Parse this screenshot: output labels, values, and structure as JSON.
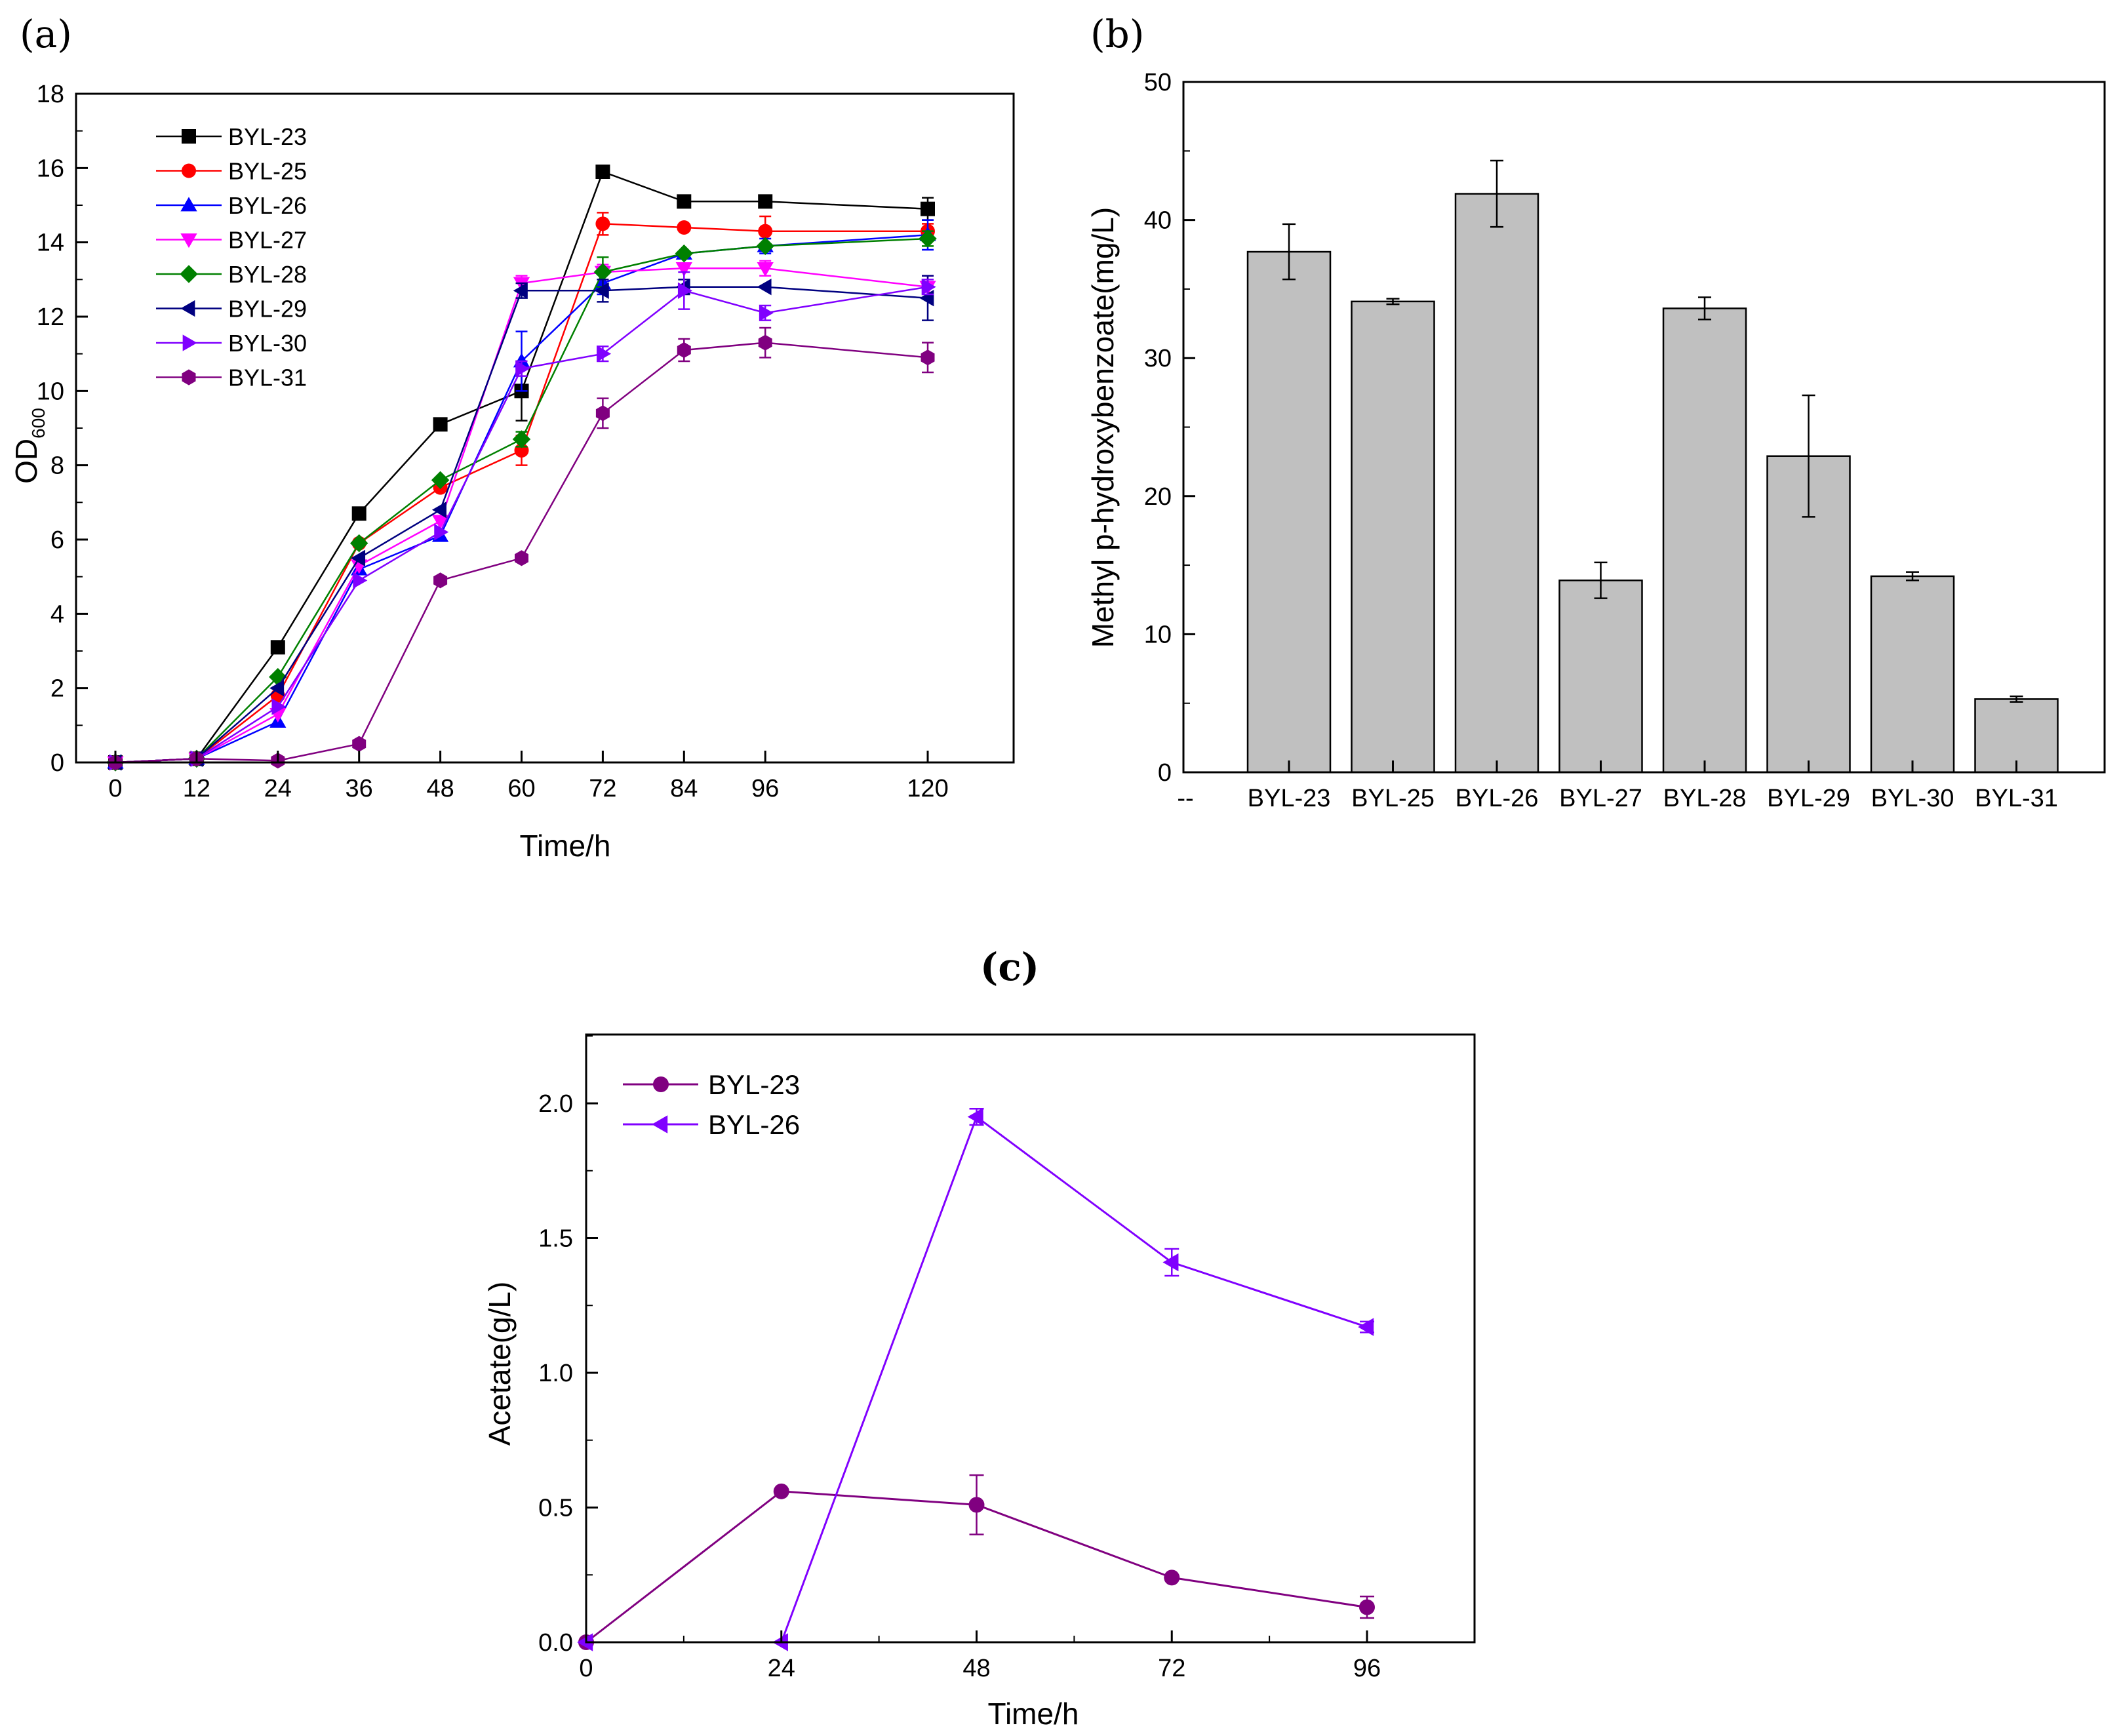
{
  "chart_data": [
    {
      "panel_label": "(a)",
      "type": "line",
      "xlabel": "Time/h",
      "ylabel_main": "OD",
      "ylabel_sub": "600",
      "x": [
        0,
        12,
        24,
        36,
        48,
        60,
        72,
        84,
        96,
        120
      ],
      "xticks": [
        "0",
        "12",
        "24",
        "36",
        "48",
        "60",
        "72",
        "84",
        "96",
        "120"
      ],
      "yticks": [
        "0",
        "2",
        "4",
        "6",
        "8",
        "10",
        "12",
        "14",
        "16",
        "18"
      ],
      "ylim": [
        0,
        18
      ],
      "legend_position": "top-left",
      "series": [
        {
          "name": "BYL-23",
          "color": "#000000",
          "marker": "square",
          "values": [
            0,
            0.1,
            3.1,
            6.7,
            9.1,
            10.0,
            15.9,
            15.1,
            15.1,
            14.9
          ],
          "errors": [
            0,
            0,
            0.1,
            0.1,
            0.1,
            0.8,
            0.1,
            0.1,
            0.1,
            0.3
          ]
        },
        {
          "name": "BYL-25",
          "color": "#ff0000",
          "marker": "circle",
          "values": [
            0,
            0.1,
            1.8,
            5.9,
            7.4,
            8.4,
            14.5,
            14.4,
            14.3,
            14.3
          ],
          "errors": [
            0,
            0,
            0.1,
            0.1,
            0.1,
            0.4,
            0.3,
            0.1,
            0.4,
            0.2
          ]
        },
        {
          "name": "BYL-26",
          "color": "#0000ff",
          "marker": "triangle-up",
          "values": [
            0,
            0.1,
            1.1,
            5.2,
            6.1,
            10.8,
            12.9,
            13.7,
            13.9,
            14.2
          ],
          "errors": [
            0,
            0,
            0.1,
            0.1,
            0.1,
            0.8,
            0.3,
            0.1,
            0.2,
            0.4
          ]
        },
        {
          "name": "BYL-27",
          "color": "#ff00ff",
          "marker": "triangle-down",
          "values": [
            0,
            0.1,
            1.3,
            5.3,
            6.5,
            12.9,
            13.2,
            13.3,
            13.3,
            12.8
          ],
          "errors": [
            0,
            0,
            0.1,
            0.1,
            0.1,
            0.2,
            0.2,
            0.1,
            0.2,
            0.3
          ]
        },
        {
          "name": "BYL-28",
          "color": "#008000",
          "marker": "diamond",
          "values": [
            0,
            0.1,
            2.3,
            5.9,
            7.6,
            8.7,
            13.2,
            13.7,
            13.9,
            14.1
          ],
          "errors": [
            0,
            0,
            0.1,
            0.1,
            0.1,
            0.2,
            0.4,
            0.1,
            0.1,
            0.2
          ]
        },
        {
          "name": "BYL-29",
          "color": "#000080",
          "marker": "triangle-left",
          "values": [
            0,
            0.1,
            2.0,
            5.5,
            6.8,
            12.7,
            12.7,
            12.8,
            12.8,
            12.5
          ],
          "errors": [
            0,
            0,
            0.1,
            0.1,
            0.1,
            0.2,
            0.3,
            0.2,
            0.1,
            0.6
          ]
        },
        {
          "name": "BYL-30",
          "color": "#8000ff",
          "marker": "triangle-right",
          "values": [
            0,
            0.1,
            1.5,
            4.9,
            6.2,
            10.6,
            11.0,
            12.7,
            12.1,
            12.8
          ],
          "errors": [
            0,
            0,
            0.1,
            0.1,
            0.1,
            0.2,
            0.2,
            0.5,
            0.2,
            0.2
          ]
        },
        {
          "name": "BYL-31",
          "color": "#800080",
          "marker": "hexagon",
          "values": [
            0,
            0.1,
            0.05,
            0.5,
            4.9,
            5.5,
            9.4,
            11.1,
            11.3,
            10.9
          ],
          "errors": [
            0,
            0,
            0,
            0.05,
            0.1,
            0.1,
            0.4,
            0.3,
            0.4,
            0.4
          ]
        }
      ]
    },
    {
      "panel_label": "(b)",
      "type": "bar",
      "ylabel": "Methyl p-hydroxybenzoate(mg/L)",
      "categories": [
        "BYL-23",
        "BYL-25",
        "BYL-26",
        "BYL-27",
        "BYL-28",
        "BYL-29",
        "BYL-30",
        "BYL-31"
      ],
      "values": [
        37.7,
        34.1,
        41.9,
        13.9,
        33.6,
        22.9,
        14.2,
        5.3
      ],
      "errors": [
        2.0,
        0.2,
        2.4,
        1.3,
        0.8,
        4.4,
        0.3,
        0.2
      ],
      "leading_tick_label": "--",
      "yticks": [
        "0",
        "10",
        "20",
        "30",
        "40",
        "50"
      ],
      "ylim": [
        0,
        50
      ],
      "bar_color": "#c0c0c0"
    },
    {
      "panel_label": "(c)",
      "type": "line",
      "xlabel": "Time/h",
      "ylabel": "Acetate(g/L)",
      "x": [
        0,
        24,
        48,
        72,
        96
      ],
      "xticks": [
        "0",
        "24",
        "48",
        "72",
        "96"
      ],
      "yticks": [
        "0.0",
        "0.5",
        "1.0",
        "1.5",
        "2.0"
      ],
      "ylim": [
        0,
        2.25
      ],
      "legend_position": "top-left",
      "series": [
        {
          "name": "BYL-23",
          "color": "#800080",
          "marker": "circle",
          "values": [
            0,
            0.56,
            0.51,
            0.24,
            0.13
          ],
          "errors": [
            0,
            0.01,
            0.11,
            0.01,
            0.04
          ]
        },
        {
          "name": "BYL-26",
          "color": "#8000ff",
          "marker": "triangle-left",
          "values": [
            0,
            0,
            1.95,
            1.41,
            1.17
          ],
          "errors": [
            0,
            0,
            0.03,
            0.05,
            0.02
          ]
        }
      ]
    }
  ]
}
